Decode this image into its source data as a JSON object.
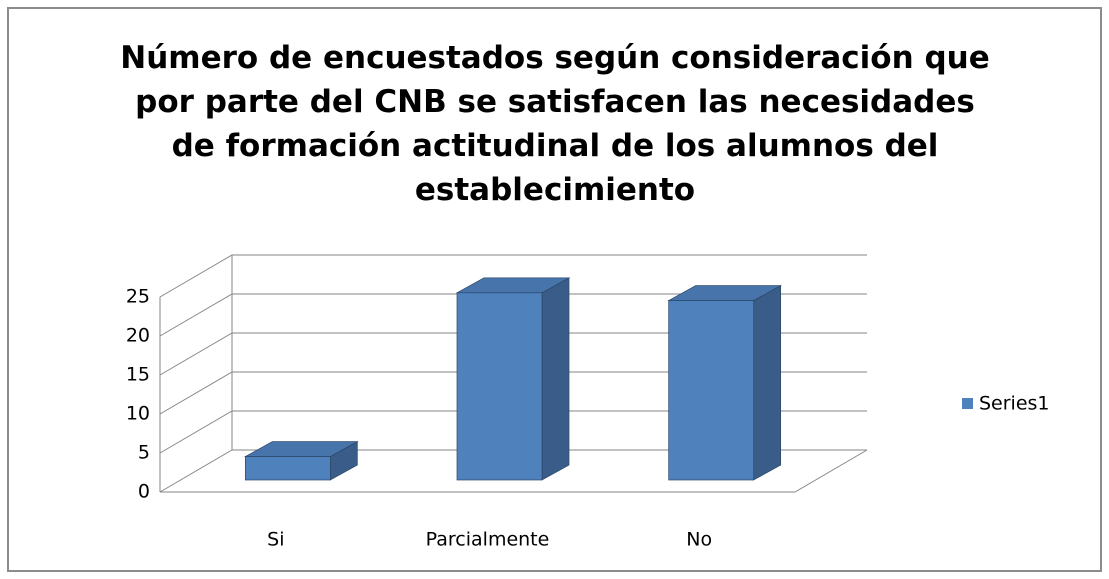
{
  "chart_data": {
    "type": "bar3d",
    "title": "Número de encuestados según consideración que por parte del CNB se satisfacen las necesidades de formación actitudinal de los alumnos del establecimiento",
    "categories": [
      "Si",
      "Parcialmente",
      "No"
    ],
    "series": [
      {
        "name": "Series1",
        "color": "#4f81bd",
        "values": [
          3,
          24,
          23
        ]
      }
    ],
    "ylim": [
      0,
      25
    ],
    "yticks": [
      0,
      5,
      10,
      15,
      20,
      25
    ],
    "grid": true,
    "legend": "right"
  }
}
